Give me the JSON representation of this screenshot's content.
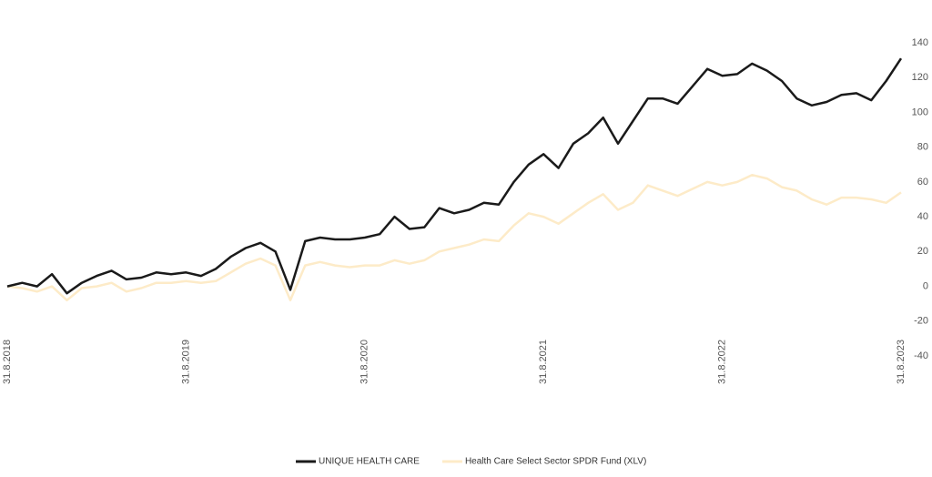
{
  "chart_data": {
    "type": "line",
    "x": [
      0,
      1,
      2,
      3,
      4,
      5,
      6,
      7,
      8,
      9,
      10,
      11,
      12,
      13,
      14,
      15,
      16,
      17,
      18,
      19,
      20,
      21,
      22,
      23,
      24,
      25,
      26,
      27,
      28,
      29,
      30,
      31,
      32,
      33,
      34,
      35,
      36,
      37,
      38,
      39,
      40,
      41,
      42,
      43,
      44,
      45,
      46,
      47,
      48,
      49,
      50,
      51,
      52,
      53,
      54,
      55,
      56,
      57,
      58,
      59,
      60
    ],
    "series": [
      {
        "name": "UNIQUE HEALTH CARE",
        "color": "#1a1a1a",
        "values": [
          0,
          2,
          0,
          7,
          -4,
          2,
          6,
          9,
          4,
          5,
          8,
          7,
          8,
          6,
          10,
          17,
          22,
          25,
          20,
          -2,
          26,
          28,
          27,
          27,
          28,
          30,
          40,
          33,
          34,
          45,
          42,
          44,
          48,
          47,
          60,
          70,
          76,
          68,
          82,
          88,
          97,
          82,
          95,
          108,
          108,
          105,
          115,
          125,
          121,
          122,
          128,
          124,
          118,
          108,
          104,
          106,
          110,
          111,
          107,
          118,
          131
        ]
      },
      {
        "name": "Health Care Select Sector SPDR Fund (XLV)",
        "color": "#fdebc8",
        "values": [
          0,
          -1,
          -3,
          0,
          -8,
          -1,
          0,
          2,
          -3,
          -1,
          2,
          2,
          3,
          2,
          3,
          8,
          13,
          16,
          12,
          -8,
          12,
          14,
          12,
          11,
          12,
          12,
          15,
          13,
          15,
          20,
          22,
          24,
          27,
          26,
          35,
          42,
          40,
          36,
          42,
          48,
          53,
          44,
          48,
          58,
          55,
          52,
          56,
          60,
          58,
          60,
          64,
          62,
          57,
          55,
          50,
          47,
          51,
          51,
          50,
          48,
          54
        ]
      }
    ],
    "xlim": [
      0,
      60
    ],
    "xticks": [
      {
        "value": 0,
        "label": "31.8.2018"
      },
      {
        "value": 12,
        "label": "31.8.2019"
      },
      {
        "value": 24,
        "label": "31.8.2020"
      },
      {
        "value": 36,
        "label": "31.8.2021"
      },
      {
        "value": 48,
        "label": "31.8.2022"
      },
      {
        "value": 60,
        "label": "31.8.2023"
      }
    ],
    "ylim": [
      -40,
      140
    ],
    "yticks": [
      -40,
      -20,
      0,
      20,
      40,
      60,
      80,
      100,
      120,
      140
    ]
  }
}
